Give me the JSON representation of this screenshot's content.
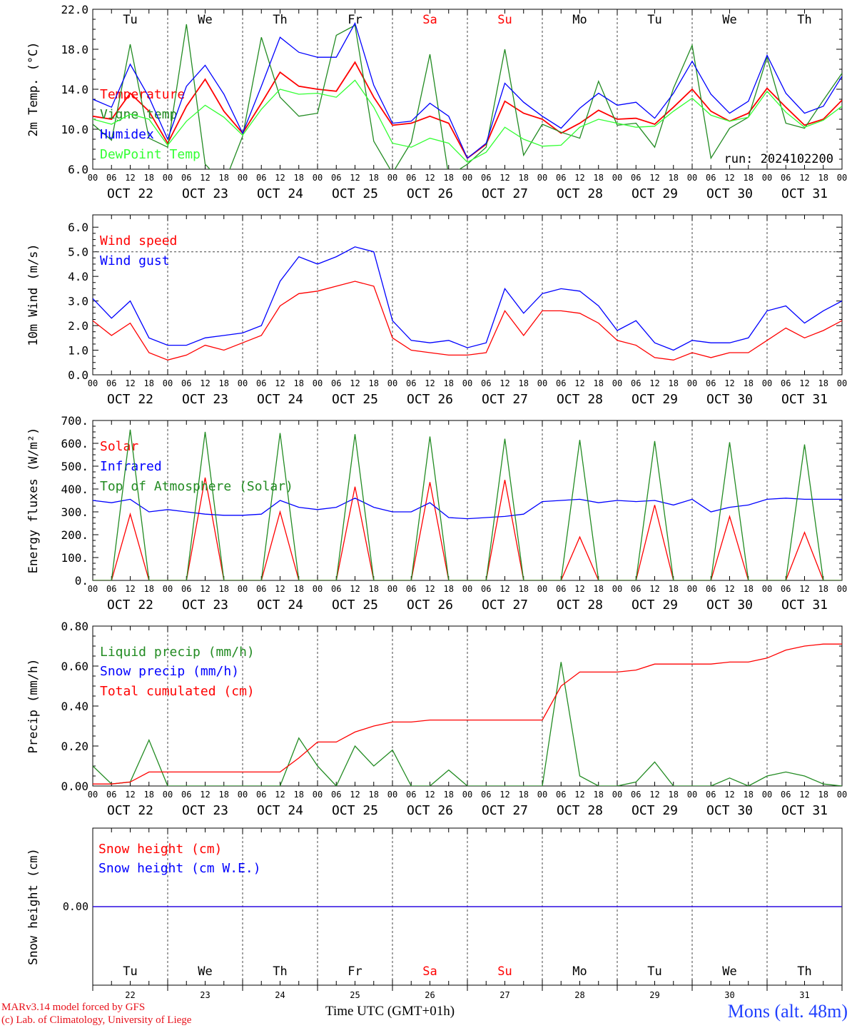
{
  "chart_data": [
    {
      "type": "line",
      "ylabel": "2m Temp. (°C)",
      "ylim": [
        6,
        22
      ],
      "yticks": [
        "6.0",
        "10.0",
        "14.0",
        "18.0",
        "22.0"
      ],
      "run_label": "run: 2024102200",
      "days": [
        "Tu",
        "We",
        "Th",
        "Fr",
        "Sa",
        "Su",
        "Mo",
        "Tu",
        "We",
        "Th"
      ],
      "weekend_days": [
        "Sa",
        "Su"
      ],
      "x_hours": [
        0,
        6,
        12,
        18,
        24,
        30,
        36,
        42,
        48,
        54,
        60,
        66,
        72,
        78,
        84,
        90,
        96,
        102,
        108,
        114,
        120,
        126,
        132,
        138,
        144,
        150,
        156,
        162,
        168,
        174,
        180,
        186,
        192,
        198,
        204,
        210,
        216,
        222,
        228,
        234,
        240
      ],
      "series": [
        {
          "name": "Temperature",
          "color": "#ff0000",
          "values": [
            11.3,
            11.0,
            13.6,
            11.8,
            8.6,
            12.3,
            15.0,
            11.8,
            9.6,
            12.6,
            15.7,
            14.3,
            14.0,
            13.8,
            16.7,
            13.2,
            10.4,
            10.6,
            11.3,
            10.6,
            7.1,
            8.5,
            12.8,
            11.6,
            11.0,
            9.6,
            10.6,
            11.9,
            11.0,
            11.1,
            10.5,
            12.2,
            14.0,
            11.8,
            10.8,
            11.6,
            14.1,
            12.2,
            10.4,
            11.0,
            12.9
          ]
        },
        {
          "name": "Vigne temp",
          "color": "#228b22",
          "values": [
            10.5,
            8.9,
            18.5,
            9.1,
            8.2,
            20.5,
            6.5,
            4.5,
            9.3,
            19.2,
            13.2,
            11.3,
            11.6,
            19.4,
            20.4,
            8.8,
            5.6,
            8.7,
            17.5,
            5.3,
            6.5,
            8.2,
            18.0,
            7.4,
            10.5,
            9.7,
            9.1,
            14.8,
            10.4,
            10.6,
            8.2,
            14.1,
            18.4,
            7.1,
            10.1,
            11.2,
            17.2,
            10.6,
            10.1,
            12.9,
            15.6
          ]
        },
        {
          "name": "Humidex",
          "color": "#0000ff",
          "values": [
            13.0,
            12.2,
            16.5,
            13.2,
            9.0,
            14.3,
            16.4,
            13.5,
            9.6,
            14.3,
            19.2,
            17.7,
            17.2,
            17.2,
            20.6,
            14.4,
            10.6,
            10.8,
            12.6,
            11.3,
            7.1,
            8.6,
            14.6,
            12.7,
            11.3,
            10.1,
            12.1,
            13.6,
            12.4,
            12.7,
            11.1,
            13.6,
            16.8,
            13.5,
            11.6,
            12.8,
            17.4,
            13.6,
            11.6,
            12.3,
            15.3
          ]
        },
        {
          "name": "DewPoint Temp",
          "color": "#33ff33",
          "values": [
            11.0,
            10.5,
            11.5,
            11.0,
            8.4,
            10.8,
            12.4,
            11.2,
            9.4,
            12.0,
            14.0,
            13.5,
            13.6,
            13.2,
            14.9,
            12.2,
            8.6,
            8.2,
            9.1,
            8.6,
            6.7,
            7.7,
            10.2,
            9.0,
            8.3,
            8.4,
            10.2,
            11.0,
            10.6,
            10.2,
            10.3,
            11.8,
            13.1,
            11.4,
            10.8,
            11.2,
            13.8,
            11.7,
            10.2,
            10.9,
            12.3
          ]
        }
      ]
    },
    {
      "type": "line",
      "ylabel": "10m Wind (m/s)",
      "ylim": [
        0,
        6.5
      ],
      "yticks": [
        "0.0",
        "1.0",
        "2.0",
        "3.0",
        "4.0",
        "5.0",
        "6.0"
      ],
      "ref_line": 5.0,
      "x_hours": [
        0,
        6,
        12,
        18,
        24,
        30,
        36,
        42,
        48,
        54,
        60,
        66,
        72,
        78,
        84,
        90,
        96,
        102,
        108,
        114,
        120,
        126,
        132,
        138,
        144,
        150,
        156,
        162,
        168,
        174,
        180,
        186,
        192,
        198,
        204,
        210,
        216,
        222,
        228,
        234,
        240
      ],
      "series": [
        {
          "name": "Wind speed",
          "color": "#ff0000",
          "values": [
            2.2,
            1.6,
            2.1,
            0.9,
            0.6,
            0.8,
            1.2,
            1.0,
            1.3,
            1.6,
            2.8,
            3.3,
            3.4,
            3.6,
            3.8,
            3.6,
            1.5,
            1.0,
            0.9,
            0.8,
            0.8,
            0.9,
            2.6,
            1.6,
            2.6,
            2.6,
            2.5,
            2.1,
            1.4,
            1.2,
            0.7,
            0.6,
            0.9,
            0.7,
            0.9,
            0.9,
            1.4,
            1.9,
            1.5,
            1.8,
            2.2
          ]
        },
        {
          "name": "Wind gust",
          "color": "#0000ff",
          "values": [
            3.1,
            2.3,
            3.0,
            1.5,
            1.2,
            1.2,
            1.5,
            1.6,
            1.7,
            2.0,
            3.8,
            4.8,
            4.5,
            4.8,
            5.2,
            5.0,
            2.2,
            1.4,
            1.3,
            1.4,
            1.1,
            1.3,
            3.5,
            2.5,
            3.3,
            3.5,
            3.4,
            2.8,
            1.8,
            2.2,
            1.3,
            1.0,
            1.4,
            1.3,
            1.3,
            1.5,
            2.6,
            2.8,
            2.1,
            2.6,
            3.0
          ]
        }
      ]
    },
    {
      "type": "line",
      "ylabel": "Energy fluxes (W/m²)",
      "ylim": [
        0,
        700
      ],
      "yticks": [
        "0.",
        "100.",
        "200.",
        "300.",
        "400.",
        "500.",
        "600.",
        "700."
      ],
      "x_hours": [
        0,
        6,
        12,
        18,
        24,
        30,
        36,
        42,
        48,
        54,
        60,
        66,
        72,
        78,
        84,
        90,
        96,
        102,
        108,
        114,
        120,
        126,
        132,
        138,
        144,
        150,
        156,
        162,
        168,
        174,
        180,
        186,
        192,
        198,
        204,
        210,
        216,
        222,
        228,
        234,
        240
      ],
      "series": [
        {
          "name": "Solar",
          "color": "#ff0000",
          "values": [
            0,
            0,
            290,
            0,
            0,
            0,
            450,
            0,
            0,
            0,
            300,
            0,
            0,
            0,
            410,
            0,
            0,
            0,
            430,
            0,
            0,
            0,
            440,
            0,
            0,
            0,
            190,
            0,
            0,
            0,
            330,
            0,
            0,
            0,
            280,
            0,
            0,
            0,
            210,
            0,
            0
          ]
        },
        {
          "name": "Infrared",
          "color": "#0000ff",
          "values": [
            350,
            340,
            355,
            300,
            310,
            300,
            290,
            285,
            285,
            290,
            350,
            320,
            310,
            320,
            360,
            320,
            300,
            300,
            340,
            275,
            270,
            275,
            280,
            290,
            345,
            350,
            355,
            340,
            350,
            345,
            350,
            330,
            355,
            300,
            320,
            330,
            355,
            360,
            355,
            355,
            355
          ]
        },
        {
          "name": "Top of Atmosphere (Solar)",
          "color": "#228b22",
          "values": [
            0,
            0,
            660,
            0,
            0,
            0,
            650,
            0,
            0,
            0,
            645,
            0,
            0,
            0,
            640,
            0,
            0,
            0,
            630,
            0,
            0,
            0,
            620,
            0,
            0,
            0,
            615,
            0,
            0,
            0,
            610,
            0,
            0,
            0,
            605,
            0,
            0,
            0,
            595,
            0,
            0
          ]
        }
      ]
    },
    {
      "type": "line",
      "ylabel": "Precip (mm/h)",
      "ylim": [
        0,
        0.8
      ],
      "yticks": [
        "0.00",
        "0.20",
        "0.40",
        "0.60",
        "0.80"
      ],
      "x_hours": [
        0,
        6,
        12,
        18,
        24,
        30,
        36,
        42,
        48,
        54,
        60,
        66,
        72,
        78,
        84,
        90,
        96,
        102,
        108,
        114,
        120,
        126,
        132,
        138,
        144,
        150,
        156,
        162,
        168,
        174,
        180,
        186,
        192,
        198,
        204,
        210,
        216,
        222,
        228,
        234,
        240
      ],
      "series": [
        {
          "name": "Liquid precip (mm/h)",
          "color": "#228b22",
          "values": [
            0.1,
            0.01,
            0.02,
            0.23,
            0.0,
            0.0,
            0.0,
            0.0,
            0.0,
            0.0,
            0.0,
            0.24,
            0.1,
            0.0,
            0.2,
            0.1,
            0.18,
            0.0,
            0.0,
            0.08,
            0.0,
            0.0,
            0.0,
            0.0,
            0.0,
            0.62,
            0.05,
            0.0,
            0.0,
            0.02,
            0.12,
            0.0,
            0.0,
            0.0,
            0.04,
            0.0,
            0.05,
            0.07,
            0.05,
            0.01,
            0.0
          ]
        },
        {
          "name": "Snow precip (mm/h)",
          "color": "#0000ff",
          "values": []
        },
        {
          "name": "Total cumulated (cm)",
          "color": "#ff0000",
          "values": [
            0.01,
            0.01,
            0.02,
            0.07,
            0.07,
            0.07,
            0.07,
            0.07,
            0.07,
            0.07,
            0.07,
            0.14,
            0.22,
            0.22,
            0.27,
            0.3,
            0.32,
            0.32,
            0.33,
            0.33,
            0.33,
            0.33,
            0.33,
            0.33,
            0.33,
            0.5,
            0.57,
            0.57,
            0.57,
            0.58,
            0.61,
            0.61,
            0.61,
            0.61,
            0.62,
            0.62,
            0.64,
            0.68,
            0.7,
            0.71,
            0.71
          ]
        }
      ]
    },
    {
      "type": "line",
      "ylabel": "Snow height (cm)",
      "ylim": [
        -1,
        1
      ],
      "yticks": [
        "0.00"
      ],
      "x_hours": [
        0,
        240
      ],
      "series": [
        {
          "name": "Snow height (cm)",
          "color": "#ff0000",
          "values": [
            0,
            0
          ]
        },
        {
          "name": "Snow height (cm W.E.)",
          "color": "#0000ff",
          "values": [
            0,
            0
          ]
        }
      ]
    }
  ],
  "x_axis": {
    "hour_labels": [
      "00",
      "06",
      "12",
      "18"
    ],
    "final_label": "00",
    "date_labels": [
      "OCT 22",
      "OCT 23",
      "OCT 24",
      "OCT 25",
      "OCT 26",
      "OCT 27",
      "OCT 28",
      "OCT 29",
      "OCT 30",
      "OCT 31"
    ],
    "bottom_day_numbers": [
      "22",
      "23",
      "24",
      "25",
      "26",
      "27",
      "28",
      "29",
      "30",
      "31"
    ]
  },
  "footer": {
    "credit_line1": "MARv3.14 model forced by GFS",
    "credit_line2": "(c) Lab. of Climatology, University of Liege",
    "axis_title": "Time UTC (GMT+01h)",
    "location": "Mons (alt. 48m)"
  }
}
